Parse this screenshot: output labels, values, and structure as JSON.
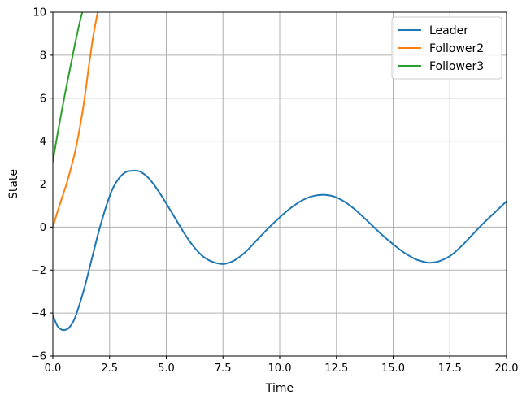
{
  "chart_data": {
    "type": "line",
    "title": "",
    "xlabel": "Time",
    "ylabel": "State",
    "xlim": [
      0,
      20
    ],
    "ylim": [
      -6,
      10
    ],
    "xticks": [
      0,
      2.5,
      5,
      7.5,
      10,
      12.5,
      15,
      17.5,
      20
    ],
    "xtick_labels": [
      "0.0",
      "2.5",
      "5.0",
      "7.5",
      "10.0",
      "12.5",
      "15.0",
      "17.5",
      "20.0"
    ],
    "yticks": [
      -6,
      -4,
      -2,
      0,
      2,
      4,
      6,
      8,
      10
    ],
    "ytick_labels": [
      "−6",
      "−4",
      "−2",
      "0",
      "2",
      "4",
      "6",
      "8",
      "10"
    ],
    "grid": true,
    "legend_position": "top-right",
    "series": [
      {
        "name": "Leader",
        "color": "#1f77b4",
        "x": [
          0,
          0.2,
          0.4,
          0.55,
          0.7,
          0.9,
          1.1,
          1.4,
          1.7,
          2.0,
          2.3,
          2.6,
          2.9,
          3.2,
          3.5,
          3.8,
          4.1,
          4.4,
          4.7,
          5.0,
          5.4,
          5.8,
          6.2,
          6.6,
          7.0,
          7.5,
          8.0,
          8.5,
          9.0,
          9.5,
          10.0,
          10.5,
          11.0,
          11.5,
          12.0,
          12.5,
          13.0,
          13.5,
          14.0,
          14.5,
          15.0,
          15.5,
          16.0,
          16.5,
          16.7,
          17.0,
          17.5,
          18.0,
          18.5,
          19.0,
          19.5,
          20.0
        ],
        "y": [
          -4.1,
          -4.6,
          -4.78,
          -4.78,
          -4.7,
          -4.4,
          -3.85,
          -2.8,
          -1.55,
          -0.3,
          0.8,
          1.7,
          2.25,
          2.55,
          2.62,
          2.6,
          2.4,
          2.05,
          1.6,
          1.1,
          0.4,
          -0.3,
          -0.9,
          -1.35,
          -1.6,
          -1.72,
          -1.55,
          -1.15,
          -0.6,
          -0.05,
          0.45,
          0.9,
          1.25,
          1.45,
          1.5,
          1.38,
          1.08,
          0.65,
          0.15,
          -0.35,
          -0.8,
          -1.2,
          -1.5,
          -1.65,
          -1.65,
          -1.6,
          -1.35,
          -0.9,
          -0.35,
          0.2,
          0.7,
          1.2
        ]
      },
      {
        "name": "Follower2",
        "color": "#ff7f0e",
        "x": [
          0,
          0.2,
          0.4,
          0.6,
          0.8,
          1.0,
          1.2,
          1.4,
          1.6,
          1.75,
          1.85,
          1.92,
          1.97,
          2.0
        ],
        "y": [
          0,
          0.7,
          1.35,
          2.0,
          2.75,
          3.6,
          4.7,
          6.0,
          7.6,
          8.7,
          9.3,
          9.7,
          9.95,
          10.0
        ]
      },
      {
        "name": "Follower3",
        "color": "#2ca02c",
        "x": [
          0,
          0.2,
          0.4,
          0.6,
          0.8,
          1.0,
          1.2,
          1.3
        ],
        "y": [
          3.05,
          4.3,
          5.45,
          6.55,
          7.6,
          8.65,
          9.6,
          10.0
        ]
      }
    ]
  }
}
